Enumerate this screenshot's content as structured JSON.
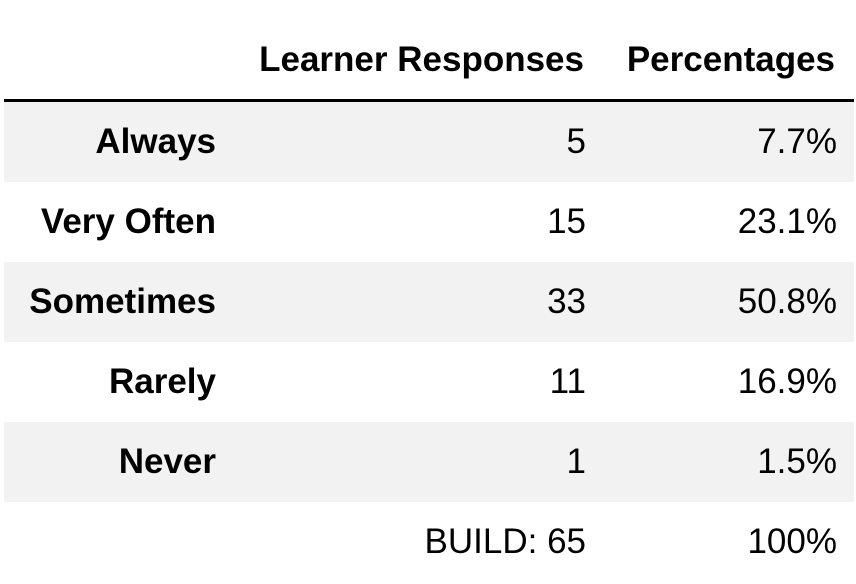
{
  "chart_data": {
    "type": "table",
    "columns": [
      "",
      "Learner Responses",
      "Percentages"
    ],
    "rows": [
      {
        "label": "Always",
        "responses": "5",
        "percentage": "7.7%"
      },
      {
        "label": "Very Often",
        "responses": "15",
        "percentage": "23.1%"
      },
      {
        "label": "Sometimes",
        "responses": "33",
        "percentage": "50.8%"
      },
      {
        "label": "Rarely",
        "responses": "11",
        "percentage": "16.9%"
      },
      {
        "label": "Never",
        "responses": "1",
        "percentage": "1.5%"
      },
      {
        "label": "",
        "responses": "BUILD: 65",
        "percentage": "100%"
      }
    ],
    "row_shading": [
      "#f2f2f2",
      "#ffffff",
      "#f2f2f2",
      "#ffffff",
      "#f2f2f2",
      "#ffffff"
    ]
  }
}
